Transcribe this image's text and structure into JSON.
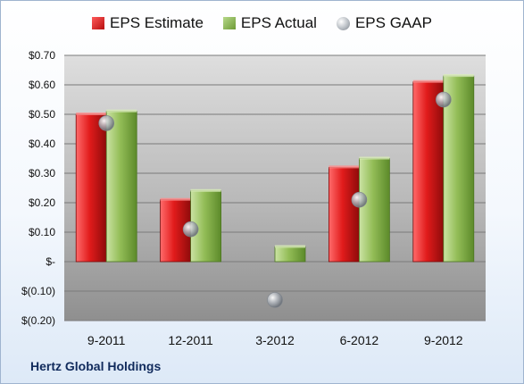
{
  "chart_data": {
    "type": "bar",
    "categories": [
      "9-2011",
      "12-2011",
      "3-2012",
      "6-2012",
      "9-2012"
    ],
    "series": [
      {
        "name": "EPS Estimate",
        "kind": "bar",
        "color": "#c8161b",
        "values": [
          0.5,
          0.21,
          null,
          0.32,
          0.61
        ]
      },
      {
        "name": "EPS Actual",
        "kind": "bar",
        "color": "#86b04c",
        "values": [
          0.51,
          0.24,
          0.05,
          0.35,
          0.63
        ]
      },
      {
        "name": "EPS GAAP",
        "kind": "marker",
        "color": "#a9aeb5",
        "values": [
          0.47,
          0.11,
          -0.13,
          0.21,
          0.55
        ]
      }
    ],
    "ylim": [
      -0.2,
      0.7
    ],
    "yticks": [
      0.7,
      0.6,
      0.5,
      0.4,
      0.3,
      0.2,
      0.1,
      0,
      -0.1,
      -0.2
    ],
    "ytick_labels": [
      "$0.70",
      "$0.60",
      "$0.50",
      "$0.40",
      "$0.30",
      "$0.20",
      "$0.10",
      "$-",
      "$(0.10)",
      "$(0.20)"
    ],
    "grid": true,
    "legend_position": "top"
  },
  "legend": {
    "estimate": "EPS Estimate",
    "actual": "EPS Actual",
    "gaap": "EPS GAAP"
  },
  "company": "Hertz Global Holdings"
}
